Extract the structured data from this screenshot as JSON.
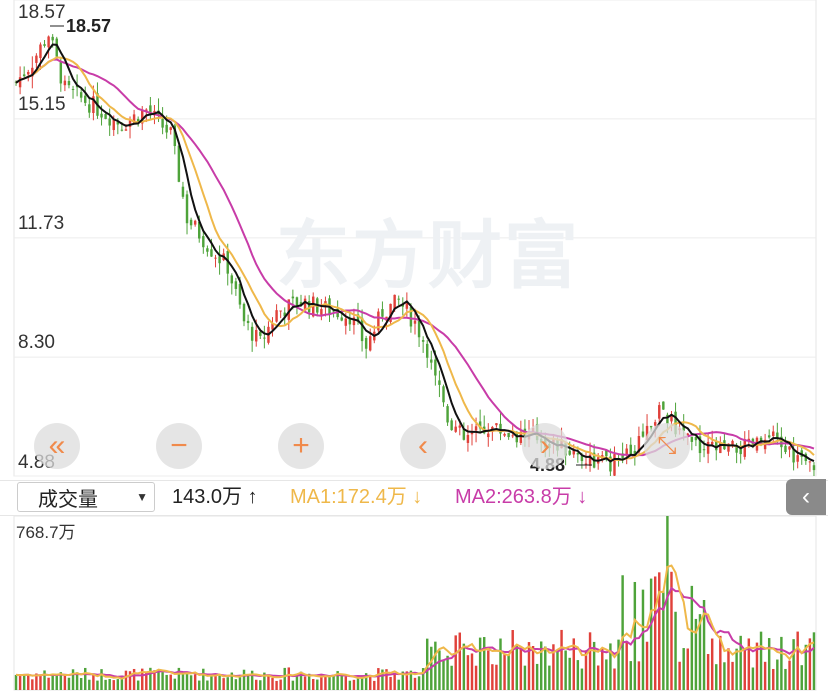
{
  "watermark": "东方财富",
  "price_labels": {
    "top": "18.57",
    "upper": "15.15",
    "middle": "11.73",
    "lower": "8.30",
    "bottom": "4.88"
  },
  "extremes": {
    "high": "18.57",
    "low": "4.88"
  },
  "controls": {
    "page_left": "«",
    "zoom_out": "−",
    "zoom_in": "+",
    "step_left": "‹",
    "step_right": "›",
    "expand": "⤡"
  },
  "volume_bar": {
    "selector": "成交量",
    "volume": "143.0万",
    "volume_arrow": "↑",
    "ma1": "MA1:172.4万",
    "ma1_arrow": "↓",
    "ma2": "MA2:263.8万",
    "ma2_arrow": "↓",
    "max_label": "768.7万"
  },
  "colors": {
    "up": "#e0413a",
    "down": "#4ea33a",
    "ma_black": "#111111",
    "ma_yellow": "#efb84a",
    "ma_purple": "#c83ca8"
  },
  "chart_data": {
    "type": "candlestick",
    "ylim": [
      4.88,
      18.57
    ],
    "ticks": [
      18.57,
      15.15,
      11.73,
      8.3,
      4.88
    ],
    "candles": [],
    "ma_short": [],
    "ma_mid": [],
    "ma_long": [],
    "volume": [],
    "volume_ylim": [
      0,
      768.7
    ],
    "vol_ma1": [],
    "vol_ma2": []
  }
}
